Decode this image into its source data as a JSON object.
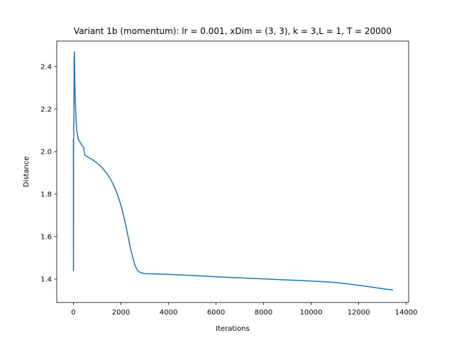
{
  "chart_data": {
    "type": "line",
    "title": "Variant 1b (momentum): lr = 0.001, xDim = (3, 3), k = 3,L = 1, T = 20000",
    "xlabel": "Iterations",
    "ylabel": "Distance",
    "xlim": [
      -700,
      14100
    ],
    "ylim": [
      1.29,
      2.52
    ],
    "xticks": [
      0,
      2000,
      4000,
      6000,
      8000,
      10000,
      12000,
      14000
    ],
    "xtick_labels": [
      "0",
      "2000",
      "4000",
      "6000",
      "8000",
      "10000",
      "12000",
      "14000"
    ],
    "yticks": [
      1.4,
      1.6,
      1.8,
      2.0,
      2.2,
      2.4
    ],
    "ytick_labels": [
      "1.4",
      "1.6",
      "1.8",
      "2.0",
      "2.2",
      "2.4"
    ],
    "grid": false,
    "series": [
      {
        "color": "#1f77b4",
        "x": [
          0,
          2,
          4,
          6,
          8,
          10,
          15,
          20,
          25,
          30,
          40,
          50,
          60,
          70,
          80,
          100,
          120,
          140,
          170,
          200,
          250,
          300,
          350,
          400,
          430,
          450,
          470,
          480,
          500,
          600,
          800,
          1000,
          1200,
          1400,
          1600,
          1800,
          2000,
          2100,
          2200,
          2300,
          2400,
          2500,
          2600,
          2700,
          2800,
          2900,
          3000,
          3200,
          3500,
          4000,
          5000,
          6000,
          7000,
          8000,
          9000,
          10000,
          10500,
          11000,
          11500,
          12000,
          12500,
          13000,
          13450
        ],
        "y": [
          2.06,
          1.44,
          1.73,
          1.45,
          2.01,
          2.06,
          2.1,
          2.16,
          2.19,
          2.44,
          2.47,
          2.42,
          2.33,
          2.28,
          2.24,
          2.18,
          2.13,
          2.1,
          2.08,
          2.06,
          2.05,
          2.04,
          2.03,
          2.025,
          2.02,
          2.0,
          1.99,
          1.985,
          1.982,
          1.975,
          1.962,
          1.946,
          1.925,
          1.898,
          1.863,
          1.815,
          1.748,
          1.705,
          1.655,
          1.6,
          1.545,
          1.5,
          1.462,
          1.44,
          1.432,
          1.428,
          1.426,
          1.425,
          1.424,
          1.422,
          1.417,
          1.411,
          1.406,
          1.401,
          1.396,
          1.391,
          1.388,
          1.384,
          1.378,
          1.371,
          1.363,
          1.355,
          1.348
        ]
      }
    ]
  }
}
